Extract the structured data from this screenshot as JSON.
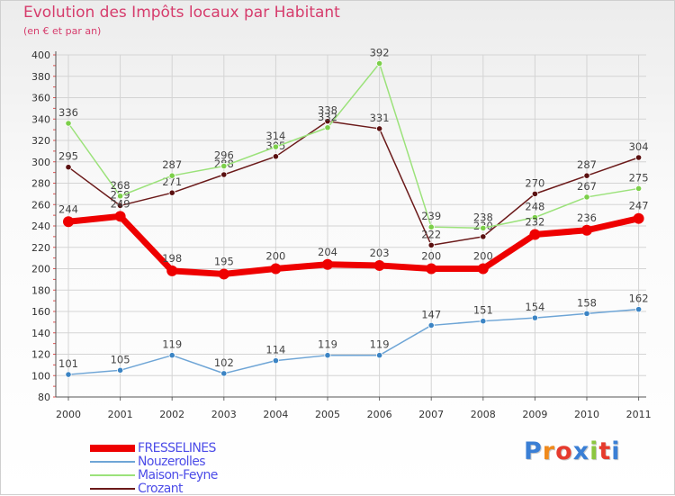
{
  "title": "Evolution des Impôts locaux par Habitant",
  "subtitle": "(en € et par an)",
  "logo": {
    "text": "Proxiti",
    "colors": [
      "#3a7fd5",
      "#f08a1c",
      "#e63b2e",
      "#3a7fd5",
      "#8cc63f",
      "#e63b2e",
      "#3a7fd5"
    ]
  },
  "chart_data": {
    "type": "line",
    "categories": [
      "2000",
      "2001",
      "2002",
      "2003",
      "2004",
      "2005",
      "2006",
      "2007",
      "2008",
      "2009",
      "2010",
      "2011"
    ],
    "ylim": [
      80,
      400
    ],
    "yticks": [
      "80",
      "100",
      "120",
      "140",
      "160",
      "180",
      "200",
      "220",
      "240",
      "260",
      "280",
      "300",
      "320",
      "340",
      "360",
      "380",
      "400"
    ],
    "grid": true,
    "legend_position": "bottom-left",
    "series": [
      {
        "name": "Crozant",
        "color": "#6b1a1a",
        "marker": "#5a1010",
        "values": [
          295,
          259,
          271,
          288,
          305,
          338,
          331,
          222,
          230,
          270,
          287,
          304
        ],
        "labels": [
          "295",
          "259",
          "271",
          "288",
          "305",
          "338",
          "331",
          "222",
          "230",
          "270",
          "287",
          "304"
        ]
      },
      {
        "name": "Maison-Feyne",
        "color": "#9be27a",
        "marker": "#7ccf4a",
        "values": [
          336,
          268,
          287,
          296,
          314,
          332,
          392,
          239,
          238,
          248,
          267,
          275
        ],
        "labels": [
          "336",
          "268",
          "287",
          "296",
          "314",
          "332",
          "392",
          "239",
          "238",
          "248",
          "267",
          "275"
        ]
      },
      {
        "name": "Nouzerolles",
        "color": "#6ea5d6",
        "marker": "#3b84c4",
        "values": [
          101,
          105,
          119,
          102,
          114,
          119,
          119,
          147,
          151,
          154,
          158,
          162
        ],
        "labels": [
          "101",
          "105",
          "119",
          "102",
          "114",
          "119",
          "119",
          "147",
          "151",
          "154",
          "158",
          "162"
        ]
      },
      {
        "name": "FRESSELINES",
        "color": "#ee0000",
        "marker": "#ee0000",
        "values": [
          244,
          249,
          198,
          195,
          200,
          204,
          203,
          200,
          200,
          232,
          236,
          247
        ],
        "labels": [
          "244",
          "249",
          "198",
          "195",
          "200",
          "204",
          "203",
          "200",
          "200",
          "232",
          "236",
          "247"
        ]
      }
    ],
    "legend": [
      "FRESSELINES",
      "Nouzerolles",
      "Maison-Feyne",
      "Crozant"
    ]
  }
}
